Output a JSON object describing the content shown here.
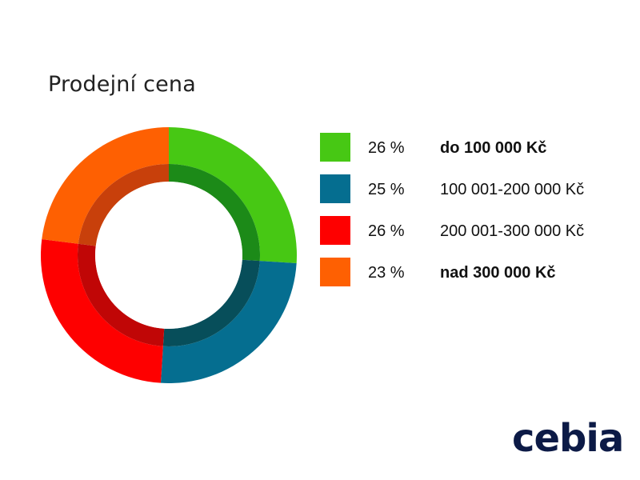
{
  "title": "Prodejní cena",
  "logo": "cebia",
  "chart_data": {
    "type": "pie",
    "variant": "donut",
    "title": "Prodejní cena",
    "start_angle_deg": 0,
    "direction": "clockwise",
    "legend_placement": "right",
    "slices": [
      {
        "label": "do 100 000 Kč",
        "percent_label": "26 %",
        "value": 26,
        "color": "#47c814",
        "inner_color": "#1c8a18",
        "label_bold": true
      },
      {
        "label": "100 001-200 000 Kč",
        "percent_label": "25 %",
        "value": 25,
        "color": "#056e90",
        "inner_color": "#074e5a",
        "label_bold": false
      },
      {
        "label": "200 001-300 000 Kč",
        "percent_label": "26 %",
        "value": 26,
        "color": "#fe0000",
        "inner_color": "#c00606",
        "label_bold": false
      },
      {
        "label": "nad 300 000 Kč",
        "percent_label": "23 %",
        "value": 23,
        "color": "#fe6002",
        "inner_color": "#c8400b",
        "label_bold": true
      }
    ]
  }
}
